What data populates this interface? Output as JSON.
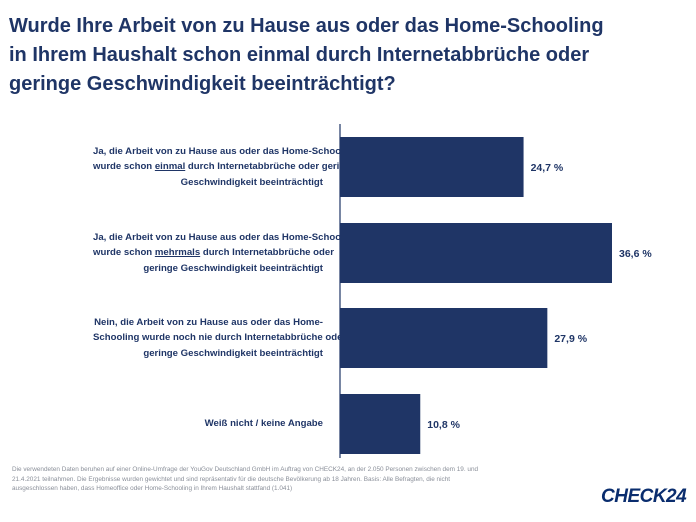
{
  "title": {
    "lines": [
      "Wurde Ihre Arbeit von zu Hause aus oder das Home-Schooling",
      "in Ihrem Haushalt schon einmal durch Internetabbrüche oder",
      "geringe Geschwindigkeit beeinträchtigt?"
    ]
  },
  "chart_data": {
    "type": "bar",
    "orientation": "horizontal",
    "categories": [
      "Ja, die Arbeit von zu Hause aus oder das Home-Schooling wurde schon einmal durch Internetabbrüche oder geringe Geschwindigkeit beeinträchtigt",
      "Ja, die Arbeit von zu Hause aus oder das Home-Schooling wurde schon mehrmals durch Internetabbrüche oder geringe Geschwindigkeit beeinträchtigt",
      "Nein, die Arbeit von zu Hause aus oder das Home-Schooling wurde noch nie durch Internetabbrüche oder geringe Geschwindigkeit beeinträchtigt",
      "Weiß nicht / keine Angabe"
    ],
    "category_lines": [
      [
        "Ja, die Arbeit von zu Hause aus oder das Home-Schooling",
        "wurde schon |einmal| durch Internetabbrüche oder geringe",
        "Geschwindigkeit beeinträchtigt"
      ],
      [
        "Ja, die Arbeit von zu Hause aus oder das Home-Schooling",
        "wurde schon |mehrmals| durch Internetabbrüche oder",
        "geringe Geschwindigkeit beeinträchtigt"
      ],
      [
        "Nein, die Arbeit von zu Hause aus oder das Home-",
        "Schooling wurde noch nie durch Internetabbrüche oder",
        "geringe Geschwindigkeit beeinträchtigt"
      ],
      [
        "Weiß nicht / keine Angabe"
      ]
    ],
    "values": [
      24.7,
      36.6,
      27.9,
      10.8
    ],
    "value_labels": [
      "24,7 %",
      "36,6 %",
      "27,9 %",
      "10,8 %"
    ],
    "xlim": [
      0,
      40
    ],
    "grid": false,
    "bar_color": "#1f3566"
  },
  "footnote": {
    "lines": [
      "Die verwendeten Daten beruhen auf einer Online-Umfrage der YouGov Deutschland GmbH im Auftrag von CHECK24, an der 2.050 Personen zwischen dem 19. und",
      "21.4.2021 teilnahmen. Die Ergebnisse wurden gewichtet und sind repräsentativ für die deutsche Bevölkerung ab 18 Jahren. Basis: Alle Befragten, die nicht",
      "ausgeschlossen haben, dass Homeoffice oder Home-Schooling in Ihrem Haushalt stattfand (1.041)"
    ]
  },
  "logo": {
    "text": "CHECK24"
  },
  "colors": {
    "title": "#1f3566",
    "bar": "#1f3566",
    "axis": "#1f3566",
    "logo": "#0a2d6e"
  }
}
